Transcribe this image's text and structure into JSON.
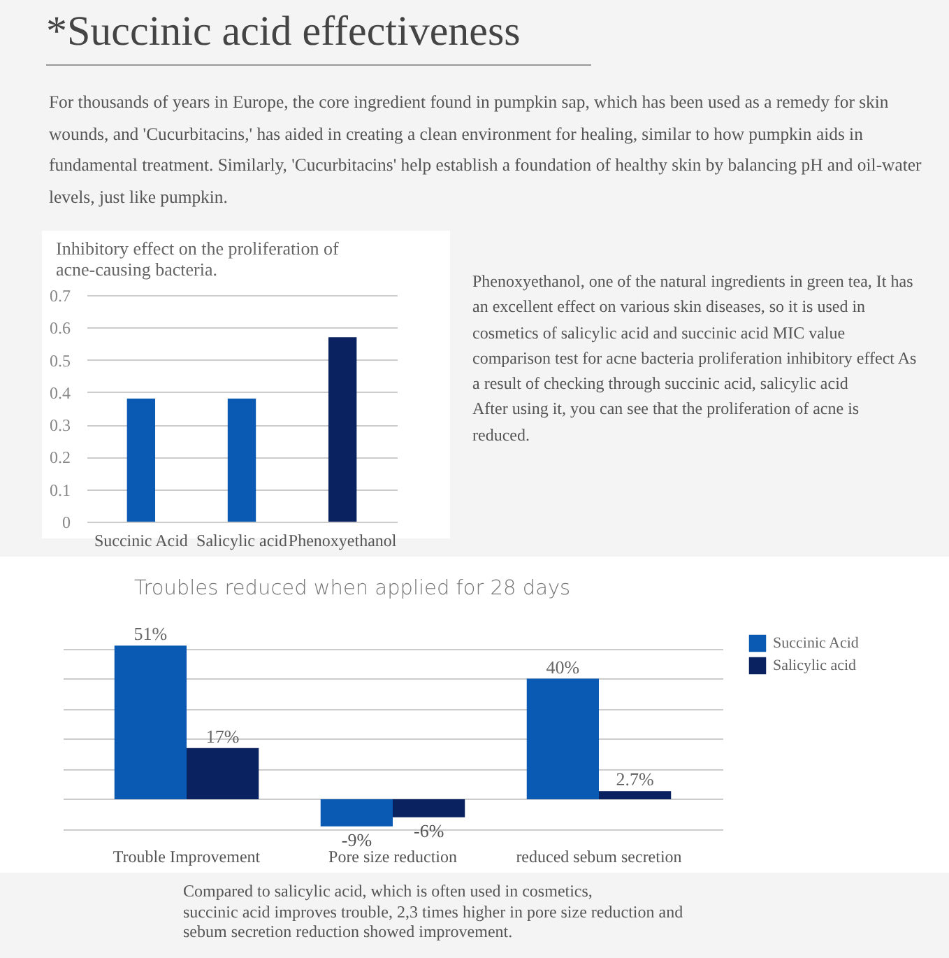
{
  "chart_data": [
    {
      "type": "other",
      "title": "*Succinic acid effectiveness",
      "annotations": [
        "For thousands of years in Europe, the core ingredient found in pumpkin sap, which has been used as a remedy for skin wounds, and 'Cucurbitacins,' has aided in creating a clean environment for healing, similar to how pumpkin aids in fundamental treatment. Similarly, 'Cucurbitacins' help establish a foundation of healthy skin by balancing pH and oil-water levels, just like pumpkin."
      ]
    },
    {
      "type": "bar",
      "title": "Inhibitory effect on the proliferation of acne-causing bacteria.",
      "categories": [
        "Succinic Acid",
        "Salicylic acid",
        "Phenoxyethanol"
      ],
      "values": [
        0.38,
        0.38,
        0.57
      ],
      "colors": [
        "#0a5ab4",
        "#0a5ab4",
        "#0b2260"
      ],
      "ylim": [
        0,
        0.7
      ],
      "yticks": [
        0,
        0.1,
        0.2,
        0.3,
        0.4,
        0.5,
        0.6,
        0.7
      ],
      "grid": true,
      "annotations": [
        "Phenoxyethanol, one of the natural ingredients in green tea, It has an excellent effect on various skin diseases, so it is used in cosmetics of salicylic acid and succinic acid MIC value comparison test for acne bacteria proliferation inhibitory effect As a result of checking through succinic acid, salicylic acid\nAfter using it, you can see that the proliferation of acne is reduced."
      ]
    },
    {
      "type": "bar",
      "title": "Troubles reduced when applied for 28 days",
      "categories": [
        "Trouble Improvement",
        "Pore size reduction",
        "reduced sebum secretion"
      ],
      "grid": true,
      "legend": "right",
      "tick_labels": "x",
      "series": [
        {
          "name": "Succinic Acid",
          "color": "#0a5ab4",
          "values": [
            51,
            -9,
            40
          ],
          "value_labels": [
            "51%",
            "-9%",
            "40%"
          ]
        },
        {
          "name": "Salicylic acid",
          "color": "#0b2260",
          "values": [
            17,
            -6,
            2.7
          ],
          "value_labels": [
            "17%",
            "-6%",
            "2.7%"
          ]
        }
      ],
      "annotations": [
        "Compared to salicylic acid, which is often used in cosmetics,\nsuccinic acid improves trouble, 2,3 times higher in pore size reduction and\nsebum secretion reduction showed improvement."
      ]
    }
  ]
}
